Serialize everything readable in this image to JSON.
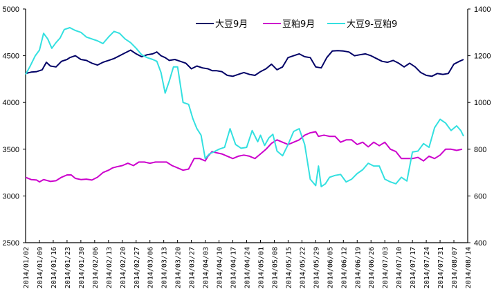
{
  "chart_data": {
    "type": "line",
    "title": "",
    "xlabel": "",
    "ylabel": "",
    "y2label": "",
    "ylim": [
      2500,
      5000
    ],
    "y2lim": [
      400,
      1400
    ],
    "yticks": [
      2500,
      3000,
      3500,
      4000,
      4500,
      5000
    ],
    "y2ticks": [
      400,
      600,
      800,
      1000,
      1200,
      1400
    ],
    "grid": false,
    "legend_position": "top-center",
    "x_tick_labels": [
      "2014/01/02",
      "2014/01/09",
      "2014/01/16",
      "2014/01/23",
      "2014/01/30",
      "2014/02/06",
      "2014/02/13",
      "2014/02/20",
      "2014/02/27",
      "2014/03/06",
      "2014/03/13",
      "2014/03/20",
      "2014/03/27",
      "2014/04/03",
      "2014/04/10",
      "2014/04/17",
      "2014/04/24",
      "2014/05/01",
      "2014/05/08",
      "2014/05/15",
      "2014/05/22",
      "2014/05/29",
      "2014/06/05",
      "2014/06/12",
      "2014/06/19",
      "2014/06/26",
      "2014/07/03",
      "2014/07/10",
      "2014/07/17",
      "2014/07/24",
      "2014/07/31",
      "2014/08/07",
      "2014/08/14"
    ],
    "series": [
      {
        "name": "大豆9月",
        "axis": "left",
        "color": "#000066",
        "x_week": [
          0,
          0.4,
          0.8,
          1.2,
          1.5,
          1.8,
          2.2,
          2.6,
          3.0,
          3.2,
          3.6,
          4.0,
          4.4,
          4.8,
          5.2,
          5.6,
          6.0,
          6.4,
          6.8,
          7.2,
          7.6,
          8.0,
          8.4,
          8.8,
          9.2,
          9.5,
          9.8,
          10.1,
          10.4,
          10.8,
          11.2,
          11.6,
          12.0,
          12.4,
          12.8,
          13.2,
          13.5,
          13.8,
          14.2,
          14.6,
          15.0,
          15.4,
          15.8,
          16.2,
          16.6,
          17.0,
          17.4,
          17.8,
          18.2,
          18.6,
          19.0,
          19.4,
          19.8,
          20.2,
          20.6,
          21.0,
          21.4,
          21.8,
          22.2,
          22.6,
          23.0,
          23.4,
          23.8,
          24.2,
          24.6,
          25.0,
          25.4,
          25.8,
          26.2,
          26.6,
          27.0,
          27.4,
          27.8,
          28.2,
          28.6,
          29.0,
          29.4,
          29.8,
          30.2,
          30.6,
          31.0,
          31.4,
          31.7
        ],
        "values": [
          4310,
          4325,
          4330,
          4350,
          4430,
          4390,
          4380,
          4440,
          4460,
          4480,
          4500,
          4460,
          4450,
          4420,
          4400,
          4430,
          4450,
          4470,
          4500,
          4530,
          4560,
          4520,
          4490,
          4510,
          4520,
          4540,
          4500,
          4480,
          4450,
          4460,
          4440,
          4420,
          4360,
          4390,
          4370,
          4360,
          4340,
          4340,
          4330,
          4290,
          4280,
          4300,
          4320,
          4300,
          4290,
          4330,
          4360,
          4410,
          4350,
          4380,
          4480,
          4500,
          4520,
          4490,
          4480,
          4380,
          4370,
          4480,
          4550,
          4555,
          4550,
          4540,
          4500,
          4510,
          4520,
          4500,
          4470,
          4440,
          4430,
          4450,
          4420,
          4380,
          4420,
          4380,
          4320,
          4290,
          4280,
          4310,
          4300,
          4310,
          4410,
          4440,
          4460
        ]
      },
      {
        "name": "豆粕9月",
        "axis": "right",
        "color": "#CC00CC",
        "x_week": [
          0,
          0.4,
          0.8,
          1.0,
          1.3,
          1.8,
          2.2,
          2.6,
          3.0,
          3.3,
          3.6,
          4.0,
          4.4,
          4.8,
          5.2,
          5.6,
          6.0,
          6.3,
          6.6,
          7.0,
          7.4,
          7.8,
          8.2,
          8.6,
          9.0,
          9.4,
          9.8,
          10.2,
          10.6,
          11.0,
          11.4,
          11.8,
          12.2,
          12.6,
          13.0,
          13.2,
          13.5,
          13.8,
          14.2,
          14.6,
          15.0,
          15.4,
          15.8,
          16.2,
          16.6,
          17.0,
          17.4,
          17.8,
          18.2,
          18.6,
          19.0,
          19.4,
          19.8,
          20.2,
          20.6,
          21.0,
          21.2,
          21.6,
          22.0,
          22.4,
          22.8,
          23.2,
          23.6,
          24.0,
          24.4,
          24.8,
          25.2,
          25.6,
          26.0,
          26.4,
          26.8,
          27.2,
          27.6,
          28.0,
          28.4,
          28.8,
          29.2,
          29.6,
          30.0,
          30.4,
          30.8,
          31.2,
          31.6
        ],
        "values": [
          680,
          670,
          668,
          660,
          670,
          662,
          665,
          680,
          690,
          690,
          675,
          670,
          672,
          668,
          680,
          700,
          710,
          720,
          725,
          730,
          740,
          730,
          745,
          745,
          740,
          745,
          745,
          745,
          730,
          720,
          710,
          715,
          760,
          760,
          750,
          770,
          790,
          785,
          780,
          770,
          760,
          770,
          775,
          770,
          760,
          780,
          800,
          825,
          840,
          830,
          820,
          830,
          840,
          860,
          870,
          875,
          855,
          860,
          855,
          855,
          830,
          840,
          840,
          820,
          830,
          810,
          830,
          815,
          830,
          800,
          790,
          760,
          760,
          760,
          765,
          750,
          770,
          760,
          775,
          800,
          800,
          795,
          800
        ]
      },
      {
        "name": "大豆9-豆粕9",
        "axis": "left",
        "color": "#33E0E0",
        "x_week": [
          0,
          0.3,
          0.7,
          1.0,
          1.3,
          1.6,
          1.9,
          2.2,
          2.5,
          2.8,
          3.2,
          3.6,
          4.0,
          4.4,
          4.8,
          5.2,
          5.6,
          6.0,
          6.4,
          6.8,
          7.2,
          7.6,
          8.0,
          8.4,
          8.8,
          9.2,
          9.5,
          9.8,
          10.1,
          10.4,
          10.7,
          11.0,
          11.4,
          11.8,
          12.1,
          12.4,
          12.7,
          13.0,
          13.3,
          13.6,
          14.0,
          14.4,
          14.8,
          15.2,
          15.6,
          16.0,
          16.4,
          16.8,
          17.0,
          17.3,
          17.6,
          17.9,
          18.2,
          18.6,
          19.0,
          19.4,
          19.8,
          20.2,
          20.6,
          21.0,
          21.2,
          21.4,
          21.7,
          22.0,
          22.4,
          22.8,
          23.2,
          23.6,
          24.0,
          24.4,
          24.8,
          25.2,
          25.6,
          26.0,
          26.4,
          26.8,
          27.2,
          27.6,
          28.0,
          28.4,
          28.8,
          29.2,
          29.6,
          30.0,
          30.4,
          30.8,
          31.2,
          31.5,
          31.7
        ],
        "values": [
          4300,
          4380,
          4500,
          4560,
          4740,
          4680,
          4580,
          4640,
          4690,
          4780,
          4800,
          4770,
          4750,
          4700,
          4680,
          4660,
          4630,
          4700,
          4760,
          4740,
          4680,
          4640,
          4580,
          4510,
          4480,
          4460,
          4440,
          4320,
          4100,
          4230,
          4380,
          4380,
          4000,
          3980,
          3830,
          3720,
          3650,
          3400,
          3450,
          3470,
          3500,
          3520,
          3720,
          3550,
          3510,
          3520,
          3700,
          3580,
          3650,
          3540,
          3620,
          3660,
          3480,
          3430,
          3550,
          3690,
          3720,
          3550,
          3180,
          3110,
          3320,
          3100,
          3130,
          3200,
          3220,
          3230,
          3150,
          3180,
          3240,
          3280,
          3350,
          3320,
          3320,
          3180,
          3150,
          3130,
          3200,
          3160,
          3470,
          3480,
          3560,
          3520,
          3730,
          3820,
          3780,
          3700,
          3750,
          3700,
          3640
        ]
      }
    ]
  },
  "legend": {
    "items": [
      {
        "label": "大豆9月",
        "color": "#000066"
      },
      {
        "label": "豆粕9月",
        "color": "#CC00CC"
      },
      {
        "label": "大豆9-豆粕9",
        "color": "#33E0E0"
      }
    ]
  },
  "axes": {
    "left_ticks": [
      "5000",
      "4500",
      "4000",
      "3500",
      "3000",
      "2500"
    ],
    "right_ticks": [
      "1400",
      "1200",
      "1000",
      "800",
      "600",
      "400"
    ]
  }
}
